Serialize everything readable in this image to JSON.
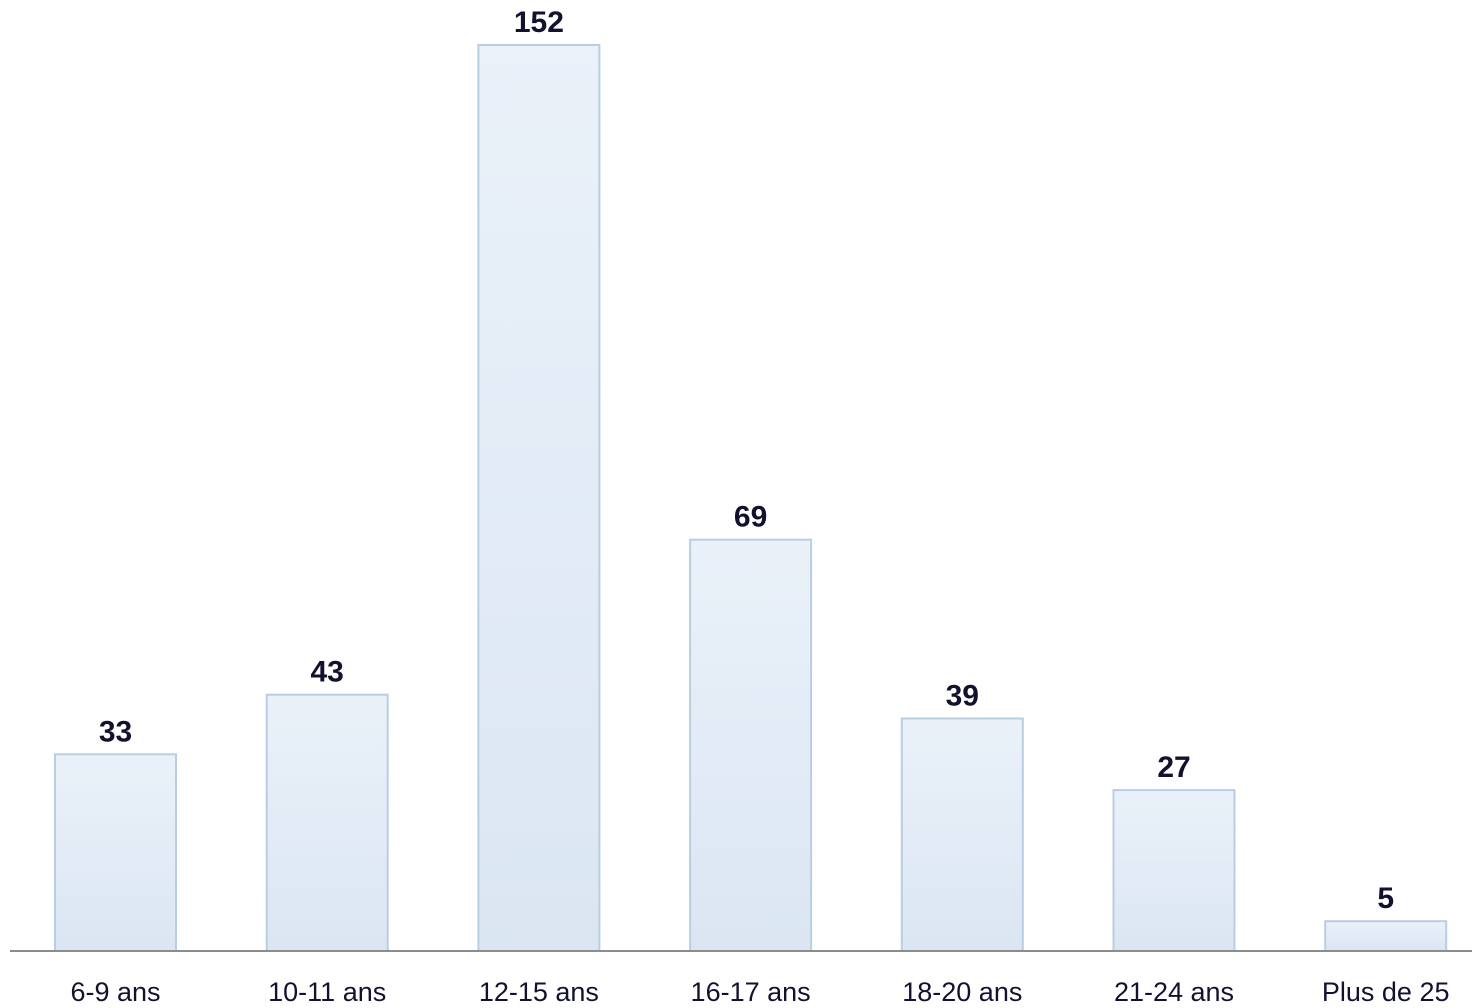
{
  "chart_data": {
    "type": "bar",
    "title": "",
    "xlabel": "",
    "ylabel": "",
    "categories": [
      "6-9 ans",
      "10-11 ans",
      "12-15 ans",
      "16-17 ans",
      "18-20 ans",
      "21-24 ans",
      "Plus de 25"
    ],
    "values": [
      33,
      43,
      152,
      69,
      39,
      27,
      5
    ],
    "ylim": [
      0,
      152
    ],
    "data_labels": true,
    "grid": false,
    "legend": "none",
    "colors": {
      "bar_fill_top": "#eaf1f9",
      "bar_fill_bottom": "#dbe6f3",
      "bar_stroke": "#b9cde3",
      "axis": "#8c8c8c",
      "value_label": "#12122e",
      "tick_label": "#12122e"
    }
  }
}
